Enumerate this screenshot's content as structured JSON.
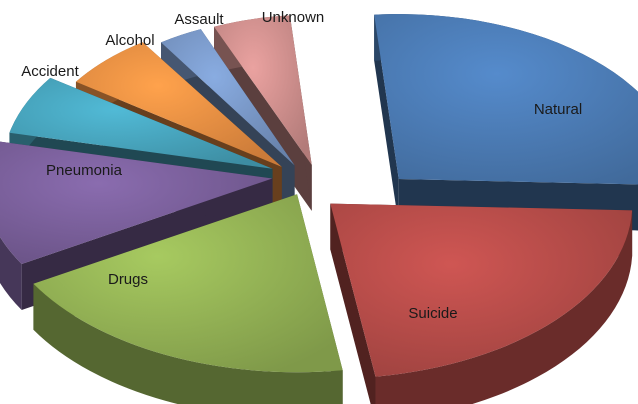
{
  "chart_data": {
    "type": "pie",
    "style": "3d-exploded",
    "legend": "none",
    "labels_inside": true,
    "slices": [
      {
        "name": "Natural",
        "value": 27,
        "color": "#4F81BD",
        "label_position": "inside"
      },
      {
        "name": "Suicide",
        "value": 22,
        "color": "#C0504D",
        "label_position": "inside"
      },
      {
        "name": "Drugs",
        "value": 19,
        "color": "#9BBB59",
        "label_position": "inside"
      },
      {
        "name": "Pneumonia",
        "value": 12,
        "color": "#8064A2",
        "label_position": "inside"
      },
      {
        "name": "Accident",
        "value": 6,
        "color": "#4BACC6",
        "label_position": "outside"
      },
      {
        "name": "Alcohol",
        "value": 6,
        "color": "#F79646",
        "label_position": "outside"
      },
      {
        "name": "Assault",
        "value": 3,
        "color": "#7F9FD0",
        "label_position": "outside"
      },
      {
        "name": "Unknown",
        "value": 5,
        "color": "#D99694",
        "label_position": "outside"
      }
    ]
  }
}
